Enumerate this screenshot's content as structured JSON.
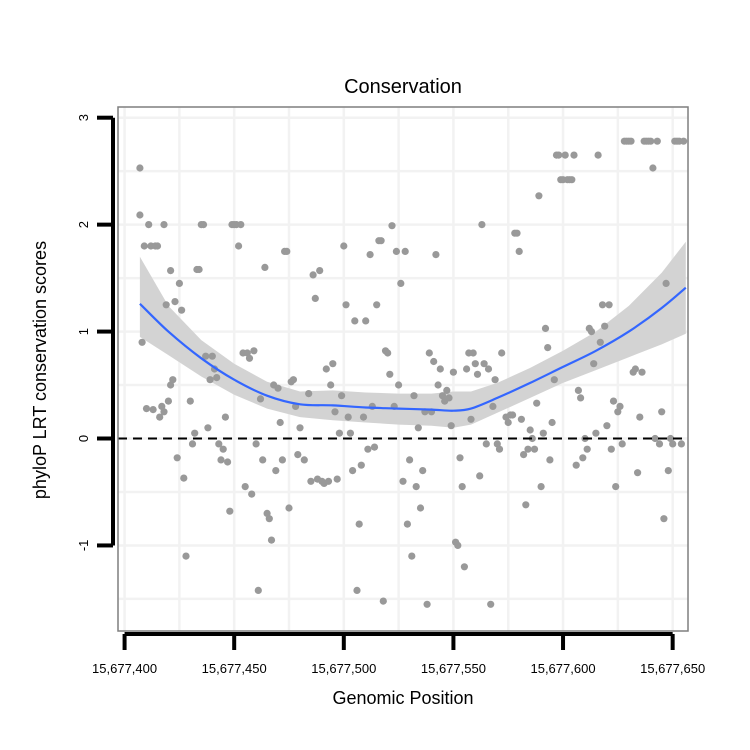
{
  "chart_data": {
    "type": "scatter",
    "title": "Conservation",
    "xlabel": "Genomic Position",
    "ylabel": "phyloP LRT conservation scores",
    "xlim": [
      15677397,
      15677657
    ],
    "ylim": [
      -1.8,
      3.1
    ],
    "x_ticks": [
      15677400,
      15677450,
      15677500,
      15677550,
      15677600,
      15677650
    ],
    "x_tick_labels": [
      "15,677,400",
      "15,677,450",
      "15,677,500",
      "15,677,550",
      "15,677,600",
      "15,677,650"
    ],
    "y_ticks": [
      -1,
      0,
      1,
      2,
      3
    ],
    "y_tick_labels": [
      "-1",
      "0",
      "1",
      "2",
      "3"
    ],
    "grid": true,
    "reference_line": {
      "y": 0,
      "style": "dashed",
      "color": "#000000"
    },
    "colors": {
      "points": "#999999",
      "smooth": "#3366ff",
      "band": "#d3d3d3",
      "grid": "#f2f2f2",
      "frame": "#7f7f7f"
    },
    "smooth": {
      "x": [
        15677407,
        15677420,
        15677435,
        15677450,
        15677465,
        15677480,
        15677495,
        15677510,
        15677525,
        15677540,
        15677550,
        15677558,
        15677570,
        15677585,
        15677600,
        15677615,
        15677630,
        15677645,
        15677656
      ],
      "y": [
        1.26,
        1.0,
        0.75,
        0.55,
        0.4,
        0.32,
        0.31,
        0.29,
        0.28,
        0.27,
        0.26,
        0.28,
        0.38,
        0.52,
        0.67,
        0.82,
        1.0,
        1.22,
        1.41
      ],
      "lower": [
        0.95,
        0.78,
        0.58,
        0.41,
        0.28,
        0.2,
        0.17,
        0.15,
        0.13,
        0.12,
        0.1,
        0.13,
        0.24,
        0.38,
        0.52,
        0.64,
        0.76,
        0.88,
        0.98
      ],
      "upper": [
        1.7,
        1.24,
        0.92,
        0.7,
        0.53,
        0.44,
        0.45,
        0.43,
        0.42,
        0.42,
        0.44,
        0.44,
        0.52,
        0.66,
        0.82,
        1.0,
        1.24,
        1.55,
        1.84
      ]
    },
    "points": [
      [
        15677407,
        2.53
      ],
      [
        15677407,
        2.09
      ],
      [
        15677408,
        0.9
      ],
      [
        15677409,
        1.8
      ],
      [
        15677410,
        0.28
      ],
      [
        15677411,
        2.0
      ],
      [
        15677412,
        1.8
      ],
      [
        15677413,
        0.27
      ],
      [
        15677414,
        1.8
      ],
      [
        15677415,
        1.8
      ],
      [
        15677416,
        0.2
      ],
      [
        15677417,
        0.3
      ],
      [
        15677418,
        2.0
      ],
      [
        15677418,
        0.25
      ],
      [
        15677419,
        1.25
      ],
      [
        15677420,
        0.35
      ],
      [
        15677421,
        0.5
      ],
      [
        15677421,
        1.57
      ],
      [
        15677422,
        0.55
      ],
      [
        15677423,
        1.28
      ],
      [
        15677424,
        -0.18
      ],
      [
        15677425,
        1.45
      ],
      [
        15677426,
        1.2
      ],
      [
        15677427,
        -0.37
      ],
      [
        15677428,
        -1.1
      ],
      [
        15677430,
        0.35
      ],
      [
        15677431,
        -0.05
      ],
      [
        15677432,
        0.05
      ],
      [
        15677433,
        1.58
      ],
      [
        15677434,
        1.58
      ],
      [
        15677435,
        2.0
      ],
      [
        15677436,
        2.0
      ],
      [
        15677437,
        0.77
      ],
      [
        15677438,
        0.1
      ],
      [
        15677439,
        0.55
      ],
      [
        15677440,
        0.77
      ],
      [
        15677441,
        0.65
      ],
      [
        15677442,
        0.57
      ],
      [
        15677443,
        -0.05
      ],
      [
        15677444,
        -0.2
      ],
      [
        15677445,
        -0.1
      ],
      [
        15677446,
        0.2
      ],
      [
        15677447,
        -0.22
      ],
      [
        15677448,
        -0.68
      ],
      [
        15677449,
        2.0
      ],
      [
        15677450,
        2.0
      ],
      [
        15677451,
        2.0
      ],
      [
        15677452,
        1.8
      ],
      [
        15677453,
        2.0
      ],
      [
        15677454,
        0.8
      ],
      [
        15677455,
        -0.45
      ],
      [
        15677456,
        0.8
      ],
      [
        15677457,
        0.75
      ],
      [
        15677458,
        -0.52
      ],
      [
        15677459,
        0.82
      ],
      [
        15677460,
        -0.05
      ],
      [
        15677461,
        -1.42
      ],
      [
        15677462,
        0.37
      ],
      [
        15677463,
        -0.2
      ],
      [
        15677464,
        1.6
      ],
      [
        15677465,
        -0.7
      ],
      [
        15677466,
        -0.75
      ],
      [
        15677467,
        -0.95
      ],
      [
        15677468,
        0.5
      ],
      [
        15677469,
        -0.3
      ],
      [
        15677470,
        0.47
      ],
      [
        15677471,
        0.15
      ],
      [
        15677472,
        -0.2
      ],
      [
        15677473,
        1.75
      ],
      [
        15677474,
        1.75
      ],
      [
        15677475,
        -0.65
      ],
      [
        15677476,
        0.53
      ],
      [
        15677477,
        0.55
      ],
      [
        15677478,
        0.3
      ],
      [
        15677479,
        -0.15
      ],
      [
        15677480,
        0.1
      ],
      [
        15677482,
        -0.2
      ],
      [
        15677484,
        0.42
      ],
      [
        15677485,
        -0.4
      ],
      [
        15677486,
        1.53
      ],
      [
        15677487,
        1.31
      ],
      [
        15677488,
        -0.38
      ],
      [
        15677489,
        1.57
      ],
      [
        15677490,
        -0.4
      ],
      [
        15677491,
        -0.42
      ],
      [
        15677492,
        0.65
      ],
      [
        15677493,
        -0.4
      ],
      [
        15677494,
        0.5
      ],
      [
        15677495,
        0.7
      ],
      [
        15677496,
        0.25
      ],
      [
        15677497,
        -0.38
      ],
      [
        15677498,
        0.05
      ],
      [
        15677499,
        0.4
      ],
      [
        15677500,
        1.8
      ],
      [
        15677501,
        1.25
      ],
      [
        15677502,
        0.2
      ],
      [
        15677503,
        0.05
      ],
      [
        15677504,
        -0.3
      ],
      [
        15677505,
        1.1
      ],
      [
        15677506,
        -1.42
      ],
      [
        15677507,
        -0.8
      ],
      [
        15677508,
        -0.25
      ],
      [
        15677509,
        0.2
      ],
      [
        15677510,
        1.1
      ],
      [
        15677511,
        -0.1
      ],
      [
        15677512,
        1.72
      ],
      [
        15677513,
        0.3
      ],
      [
        15677514,
        -0.08
      ],
      [
        15677515,
        1.25
      ],
      [
        15677516,
        1.85
      ],
      [
        15677517,
        1.85
      ],
      [
        15677518,
        -1.52
      ],
      [
        15677519,
        0.82
      ],
      [
        15677520,
        0.8
      ],
      [
        15677521,
        0.6
      ],
      [
        15677522,
        1.99
      ],
      [
        15677523,
        0.3
      ],
      [
        15677524,
        1.75
      ],
      [
        15677525,
        0.5
      ],
      [
        15677526,
        1.45
      ],
      [
        15677527,
        -0.4
      ],
      [
        15677528,
        1.75
      ],
      [
        15677529,
        -0.8
      ],
      [
        15677530,
        -0.2
      ],
      [
        15677531,
        -1.1
      ],
      [
        15677532,
        0.4
      ],
      [
        15677533,
        -0.45
      ],
      [
        15677534,
        0.1
      ],
      [
        15677535,
        -0.65
      ],
      [
        15677536,
        -0.3
      ],
      [
        15677537,
        0.25
      ],
      [
        15677538,
        -1.55
      ],
      [
        15677539,
        0.8
      ],
      [
        15677540,
        0.25
      ],
      [
        15677541,
        0.72
      ],
      [
        15677542,
        1.72
      ],
      [
        15677543,
        0.5
      ],
      [
        15677544,
        0.65
      ],
      [
        15677545,
        0.4
      ],
      [
        15677546,
        0.35
      ],
      [
        15677547,
        0.45
      ],
      [
        15677548,
        0.38
      ],
      [
        15677549,
        0.12
      ],
      [
        15677550,
        0.62
      ],
      [
        15677551,
        -0.97
      ],
      [
        15677552,
        -1.0
      ],
      [
        15677553,
        -0.18
      ],
      [
        15677554,
        -0.45
      ],
      [
        15677555,
        -1.2
      ],
      [
        15677556,
        0.65
      ],
      [
        15677557,
        0.8
      ],
      [
        15677558,
        0.18
      ],
      [
        15677559,
        0.8
      ],
      [
        15677560,
        0.7
      ],
      [
        15677561,
        0.6
      ],
      [
        15677562,
        -0.35
      ],
      [
        15677563,
        2.0
      ],
      [
        15677564,
        0.7
      ],
      [
        15677565,
        -0.05
      ],
      [
        15677566,
        0.65
      ],
      [
        15677567,
        -1.55
      ],
      [
        15677568,
        0.3
      ],
      [
        15677569,
        0.55
      ],
      [
        15677570,
        -0.05
      ],
      [
        15677571,
        -0.1
      ],
      [
        15677572,
        0.8
      ],
      [
        15677574,
        0.2
      ],
      [
        15677575,
        0.15
      ],
      [
        15677576,
        0.22
      ],
      [
        15677577,
        0.22
      ],
      [
        15677578,
        1.92
      ],
      [
        15677579,
        1.92
      ],
      [
        15677580,
        1.75
      ],
      [
        15677581,
        0.18
      ],
      [
        15677582,
        -0.15
      ],
      [
        15677583,
        -0.62
      ],
      [
        15677584,
        -0.1
      ],
      [
        15677585,
        0.08
      ],
      [
        15677586,
        0.0
      ],
      [
        15677587,
        -0.1
      ],
      [
        15677588,
        0.33
      ],
      [
        15677589,
        2.27
      ],
      [
        15677590,
        -0.45
      ],
      [
        15677591,
        0.05
      ],
      [
        15677592,
        1.03
      ],
      [
        15677593,
        0.85
      ],
      [
        15677594,
        -0.2
      ],
      [
        15677595,
        0.15
      ],
      [
        15677596,
        0.55
      ],
      [
        15677597,
        2.65
      ],
      [
        15677598,
        2.65
      ],
      [
        15677599,
        2.42
      ],
      [
        15677600,
        2.42
      ],
      [
        15677601,
        2.65
      ],
      [
        15677602,
        2.42
      ],
      [
        15677603,
        2.42
      ],
      [
        15677604,
        2.42
      ],
      [
        15677605,
        2.65
      ],
      [
        15677606,
        -0.25
      ],
      [
        15677607,
        0.45
      ],
      [
        15677608,
        0.38
      ],
      [
        15677609,
        -0.18
      ],
      [
        15677610,
        0.0
      ],
      [
        15677611,
        -0.1
      ],
      [
        15677612,
        1.03
      ],
      [
        15677613,
        1.0
      ],
      [
        15677614,
        0.7
      ],
      [
        15677615,
        0.05
      ],
      [
        15677616,
        2.65
      ],
      [
        15677617,
        0.9
      ],
      [
        15677618,
        1.25
      ],
      [
        15677619,
        1.05
      ],
      [
        15677620,
        0.12
      ],
      [
        15677621,
        1.25
      ],
      [
        15677622,
        -0.1
      ],
      [
        15677623,
        0.35
      ],
      [
        15677624,
        -0.45
      ],
      [
        15677625,
        0.25
      ],
      [
        15677626,
        0.3
      ],
      [
        15677627,
        -0.05
      ],
      [
        15677628,
        2.78
      ],
      [
        15677629,
        2.78
      ],
      [
        15677630,
        2.78
      ],
      [
        15677631,
        2.78
      ],
      [
        15677632,
        0.62
      ],
      [
        15677633,
        0.65
      ],
      [
        15677634,
        -0.32
      ],
      [
        15677635,
        0.2
      ],
      [
        15677636,
        0.62
      ],
      [
        15677637,
        2.78
      ],
      [
        15677638,
        2.78
      ],
      [
        15677639,
        2.78
      ],
      [
        15677640,
        2.78
      ],
      [
        15677641,
        2.53
      ],
      [
        15677642,
        0.0
      ],
      [
        15677643,
        2.78
      ],
      [
        15677644,
        -0.05
      ],
      [
        15677645,
        0.25
      ],
      [
        15677646,
        -0.75
      ],
      [
        15677647,
        1.45
      ],
      [
        15677648,
        -0.3
      ],
      [
        15677649,
        0.0
      ],
      [
        15677650,
        -0.05
      ],
      [
        15677651,
        2.78
      ],
      [
        15677652,
        2.78
      ],
      [
        15677653,
        2.78
      ],
      [
        15677654,
        -0.05
      ],
      [
        15677655,
        2.78
      ]
    ]
  }
}
